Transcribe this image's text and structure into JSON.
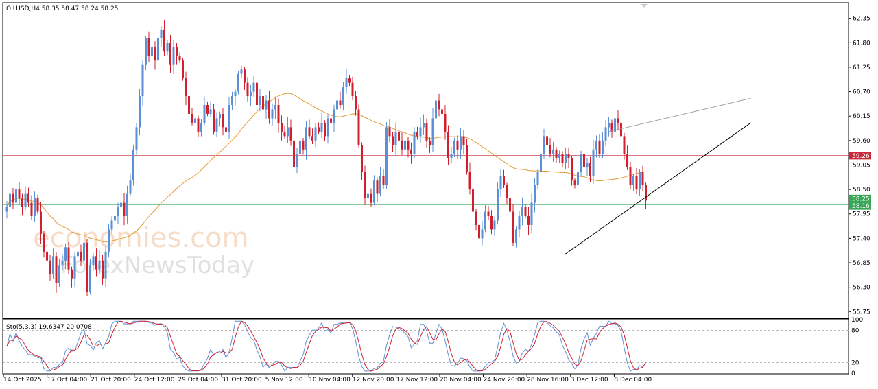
{
  "header": {
    "symbol_line": "OILUSD,H4  58.35 58.47 58.24 58.25"
  },
  "watermark": {
    "line1": "economies.com",
    "line2": "ForexNewsToday"
  },
  "colors": {
    "up": "#5b8fd6",
    "down": "#d0202e",
    "ma": "#e59a35",
    "resistance": "#c8283a",
    "support": "#3aa65a",
    "trend": "#000000",
    "channel": "#a0a0a0",
    "stoch_main": "#5b8fd6",
    "stoch_signal": "#d0202e"
  },
  "chart_data": [
    {
      "type": "candlestick",
      "title": "OILUSD,H4",
      "ohlc_last": {
        "open": 58.35,
        "high": 58.47,
        "low": 58.24,
        "close": 58.25
      },
      "ylim": [
        55.6,
        62.7
      ],
      "y_ticks": [
        "62.35",
        "61.80",
        "61.25",
        "60.70",
        "60.15",
        "59.60",
        "59.05",
        "58.50",
        "57.95",
        "57.40",
        "56.85",
        "56.30",
        "55.75"
      ],
      "x_ticks": [
        "14 Oct 2025",
        "17 Oct 04:00",
        "21 Oct 20:00",
        "24 Oct 12:00",
        "29 Oct 04:00",
        "31 Oct 20:00",
        "5 Nov 12:00",
        "10 Nov 04:00",
        "12 Nov 20:00",
        "17 Nov 12:00",
        "20 Nov 04:00",
        "24 Nov 20:00",
        "28 Nov 16:00",
        "3 Dec 12:00",
        "8 Dec 04:00"
      ],
      "levels": [
        {
          "label": "59.26",
          "value": 59.26,
          "color": "#c8283a"
        },
        {
          "label": "58.16",
          "value": 58.16,
          "color": "#3aa65a"
        },
        {
          "label": "58.25",
          "value": 58.25,
          "color": "#3aa65a"
        }
      ],
      "trendlines": [
        {
          "from_x": 181,
          "from_y": 57.05,
          "to_x": 241,
          "to_y": 60.0
        },
        {
          "from_x": 195,
          "from_y": 59.8,
          "to_x": 241,
          "to_y": 60.55
        }
      ],
      "close": [
        58.1,
        58.4,
        58.2,
        58.5,
        58.3,
        58.1,
        58.4,
        58.2,
        57.9,
        58.3,
        58.0,
        57.5,
        57.1,
        56.9,
        56.6,
        57.0,
        56.4,
        56.8,
        56.9,
        57.2,
        56.7,
        56.5,
        57.0,
        57.1,
        56.9,
        57.3,
        56.2,
        56.8,
        57.0,
        56.7,
        56.9,
        56.5,
        57.1,
        57.6,
        57.8,
        57.9,
        58.1,
        58.2,
        57.9,
        58.4,
        58.7,
        59.4,
        59.9,
        60.6,
        61.3,
        61.9,
        61.5,
        61.7,
        61.4,
        61.9,
        62.1,
        61.6,
        61.8,
        61.3,
        61.7,
        61.5,
        61.4,
        61.0,
        60.6,
        60.2,
        60.0,
        60.1,
        59.8,
        60.0,
        60.4,
        60.2,
        60.3,
        59.8,
        60.1,
        60.2,
        59.9,
        59.8,
        60.4,
        60.6,
        60.7,
        61.1,
        61.2,
        60.9,
        60.6,
        60.7,
        60.9,
        60.4,
        60.6,
        60.3,
        60.5,
        60.1,
        60.3,
        60.4,
        60.0,
        59.8,
        59.7,
        59.9,
        59.6,
        59.0,
        59.3,
        59.6,
        59.4,
        59.9,
        59.7,
        59.6,
        59.9,
        59.8,
        60.0,
        59.7,
        60.1,
        60.0,
        60.3,
        60.5,
        60.4,
        60.8,
        61.0,
        60.9,
        60.6,
        60.3,
        59.5,
        58.9,
        58.3,
        58.4,
        58.2,
        58.7,
        58.4,
        58.8,
        58.6,
        59.9,
        59.7,
        59.5,
        59.8,
        59.6,
        59.4,
        59.6,
        59.4,
        59.3,
        59.8,
        59.7,
        59.9,
        60.0,
        59.6,
        59.5,
        60.1,
        60.5,
        60.3,
        60.2,
        59.8,
        59.2,
        59.3,
        59.6,
        59.4,
        59.7,
        59.5,
        58.9,
        58.5,
        58.0,
        57.7,
        57.4,
        57.6,
        58.0,
        57.9,
        57.6,
        57.8,
        58.5,
        58.8,
        58.6,
        58.3,
        58.0,
        57.3,
        57.6,
        57.9,
        58.1,
        57.9,
        57.7,
        58.2,
        58.6,
        58.9,
        59.3,
        59.7,
        59.5,
        59.3,
        59.4,
        59.2,
        59.3,
        59.1,
        59.3,
        59.2,
        58.7,
        58.6,
        58.9,
        59.3,
        59.0,
        59.1,
        58.8,
        59.4,
        59.6,
        59.3,
        59.6,
        59.9,
        60.0,
        59.8,
        60.1,
        60.0,
        59.7,
        59.3,
        59.0,
        58.6,
        58.8,
        58.5,
        58.9,
        58.6,
        58.25
      ]
    },
    {
      "type": "line",
      "title": "Sto(5,3,3) 19.6347 20.0708",
      "series": [
        {
          "name": "main",
          "value": 19.6347
        },
        {
          "name": "signal",
          "value": 20.0708
        }
      ],
      "ylim": [
        0,
        100
      ],
      "y_ticks": [
        "100",
        "80",
        "20",
        "0"
      ],
      "levels": [
        80,
        20
      ]
    }
  ]
}
